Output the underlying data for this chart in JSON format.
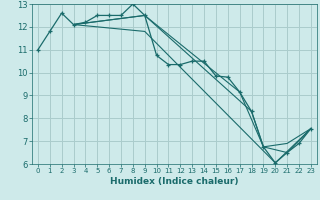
{
  "title": "",
  "xlabel": "Humidex (Indice chaleur)",
  "background_color": "#ceeaea",
  "grid_color": "#aacccc",
  "line_color": "#1a6b6b",
  "xlim": [
    -0.5,
    23.5
  ],
  "ylim": [
    6,
    13
  ],
  "xticks": [
    0,
    1,
    2,
    3,
    4,
    5,
    6,
    7,
    8,
    9,
    10,
    11,
    12,
    13,
    14,
    15,
    16,
    17,
    18,
    19,
    20,
    21,
    22,
    23
  ],
  "yticks": [
    6,
    7,
    8,
    9,
    10,
    11,
    12,
    13
  ],
  "series": [
    {
      "x": [
        0,
        1,
        2,
        3,
        4,
        5,
        6,
        7,
        8,
        9,
        10,
        11,
        12,
        13,
        14,
        15,
        16,
        17,
        18,
        19,
        20,
        21,
        22,
        23
      ],
      "y": [
        11.0,
        11.8,
        12.6,
        12.1,
        12.2,
        12.5,
        12.5,
        12.5,
        13.0,
        12.5,
        10.75,
        10.35,
        10.35,
        10.5,
        10.5,
        9.85,
        9.8,
        9.15,
        8.3,
        6.75,
        6.05,
        6.5,
        6.9,
        7.55
      ],
      "marker": true
    },
    {
      "x": [
        3,
        9,
        17,
        19,
        21,
        23
      ],
      "y": [
        12.1,
        12.5,
        9.15,
        6.75,
        6.9,
        7.55
      ],
      "marker": false
    },
    {
      "x": [
        3,
        9,
        18,
        19,
        21,
        23
      ],
      "y": [
        12.1,
        12.5,
        8.3,
        6.75,
        6.5,
        7.55
      ],
      "marker": false
    },
    {
      "x": [
        3,
        9,
        20,
        23
      ],
      "y": [
        12.1,
        11.8,
        6.05,
        7.55
      ],
      "marker": false
    }
  ]
}
